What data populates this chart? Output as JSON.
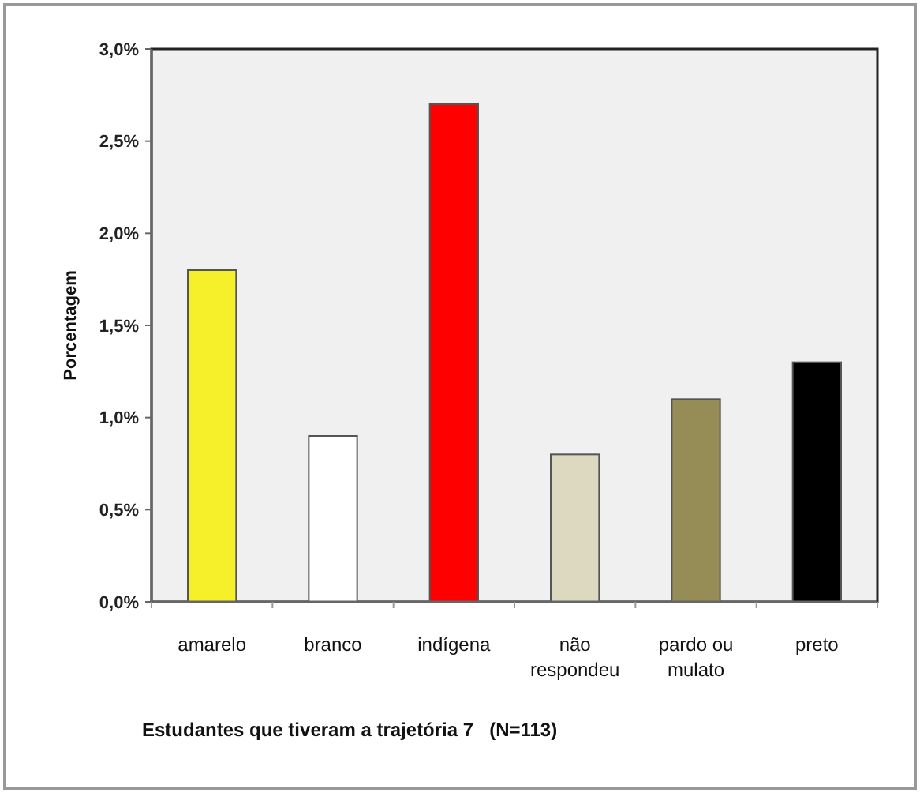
{
  "chart_data": {
    "type": "bar",
    "xlabel": "Estudantes que tiveram a trajetória 7   (N=113)",
    "ylabel": "Porcentagem",
    "categories": [
      "amarelo",
      "branco",
      "indígena",
      "não respondeu",
      "pardo ou mulato",
      "preto"
    ],
    "values": [
      1.8,
      0.9,
      2.7,
      0.8,
      1.1,
      1.3
    ],
    "colors": [
      "#f5f02a",
      "#ffffff",
      "#ff0000",
      "#ddd8c0",
      "#968c56",
      "#000000"
    ],
    "ylim": [
      0,
      3
    ],
    "yticks": [
      {
        "value": 0,
        "label": "0,0%"
      },
      {
        "value": 0.5,
        "label": "0,5%"
      },
      {
        "value": 1,
        "label": "1,0%"
      },
      {
        "value": 1.5,
        "label": "1,5%"
      },
      {
        "value": 2,
        "label": "2,0%"
      },
      {
        "value": 2.5,
        "label": "2,5%"
      },
      {
        "value": 3,
        "label": "3,0%"
      }
    ],
    "grid": false
  }
}
